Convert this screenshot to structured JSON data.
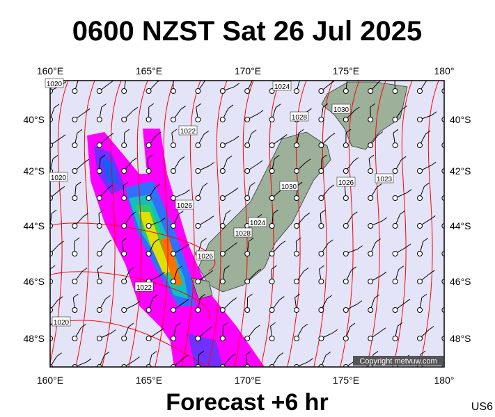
{
  "header": {
    "title": "0600 NZST Sat 26 Jul 2025"
  },
  "map": {
    "lon_labels": [
      "160°E",
      "165°E",
      "170°E",
      "175°E",
      "180°"
    ],
    "lat_labels": [
      "40°S",
      "42°S",
      "44°S",
      "46°S",
      "48°S"
    ],
    "isobar_labels": [
      "1020",
      "1022",
      "1024",
      "1026",
      "1028",
      "1030",
      "1030",
      "1026",
      "1023",
      "1022",
      "1020",
      "1026",
      "1028",
      "1024",
      "1020"
    ],
    "copyright": "Copyright metvuw.com"
  },
  "footer": {
    "forecast": "Forecast +6 hr",
    "code": "US6"
  }
}
